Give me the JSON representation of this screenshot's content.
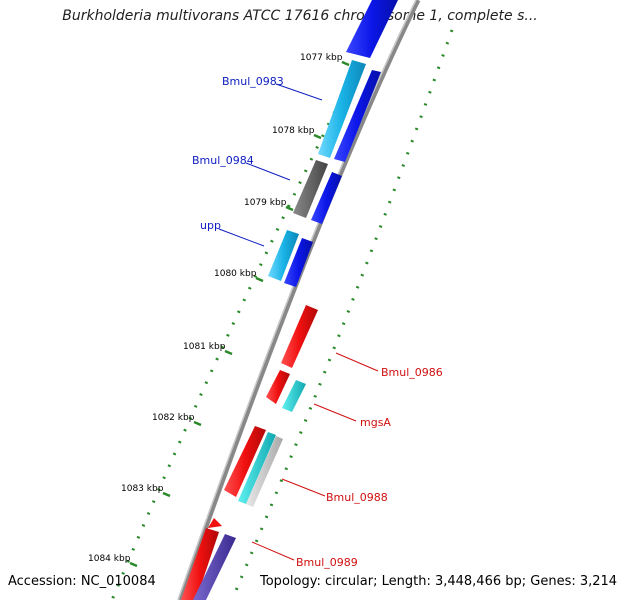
{
  "title": "Burkholderia multivorans ATCC 17616 chromosome 1, complete s...",
  "footer": {
    "accession": "Accession: NC_010084",
    "summary": "Topology: circular; Length: 3,448,466 bp; Genes: 3,214"
  },
  "colors": {
    "backbone": "#8a8a8a",
    "forward_cds": "#0b16e8",
    "reverse_cds": "#f01010",
    "rna": "#19b3e6",
    "pseudo": "#555555",
    "scale_ticks": "#2a8a2a",
    "label_forward": "#1020c0",
    "label_reverse": "#d01010"
  },
  "scale_labels": [
    "1077 kbp",
    "1078 kbp",
    "1079 kbp",
    "1080 kbp",
    "1081 kbp",
    "1082 kbp",
    "1083 kbp",
    "1084 kbp"
  ],
  "gene_labels": {
    "forward": [
      "Bmul_0983",
      "Bmul_0984",
      "upp"
    ],
    "reverse": [
      "Bmul_0986",
      "mgsA",
      "Bmul_0988",
      "Bmul_0989"
    ]
  }
}
